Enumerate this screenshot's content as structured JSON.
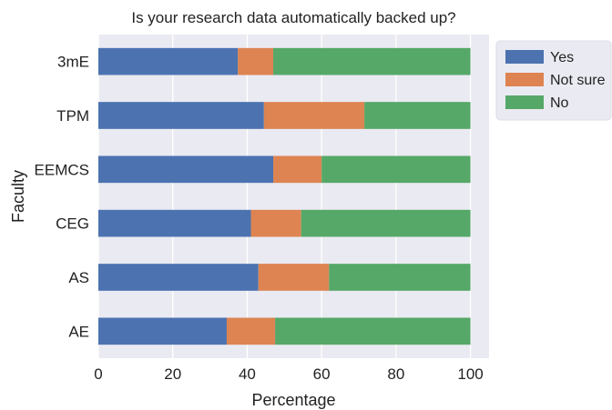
{
  "chart_data": {
    "type": "bar",
    "orientation": "horizontal",
    "stacked": true,
    "title": "Is your research data automatically backed up?",
    "xlabel": "Percentage",
    "ylabel": "Faculty",
    "xlim": [
      0,
      105
    ],
    "xticks": [
      0,
      20,
      40,
      60,
      80,
      100
    ],
    "grid": true,
    "legend_position": "outside-top-right",
    "categories": [
      "3mE",
      "TPM",
      "EEMCS",
      "CEG",
      "AS",
      "AE"
    ],
    "series": [
      {
        "name": "Yes",
        "color": "#4c72b0",
        "values": [
          37.5,
          44.5,
          47,
          41,
          43,
          34.5
        ]
      },
      {
        "name": "Not sure",
        "color": "#dd8452",
        "values": [
          9.5,
          27,
          13,
          13.5,
          19,
          13
        ]
      },
      {
        "name": "No",
        "color": "#55a868",
        "values": [
          53,
          28.5,
          40,
          45.5,
          38,
          52.5
        ]
      }
    ]
  }
}
